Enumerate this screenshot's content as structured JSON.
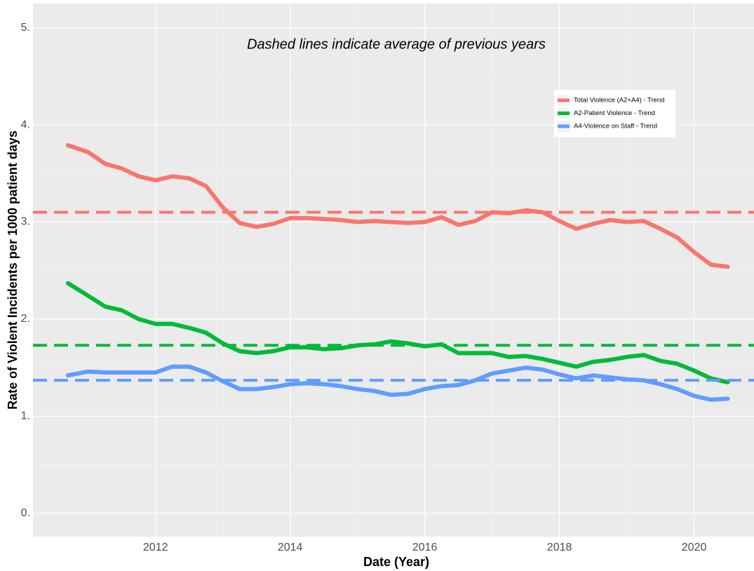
{
  "chart_data": {
    "type": "line",
    "annotation": "Dashed lines indicate average of previous years",
    "xlabel": "Date (Year)",
    "ylabel": "Rate of Violent Incidents per 1000 patient days",
    "xlim": [
      2010.18,
      2020.89
    ],
    "xticks": [
      2012,
      2014,
      2016,
      2018,
      2020
    ],
    "ylim": [
      -0.24,
      5.25
    ],
    "yticks": [
      {
        "value": 0,
        "label": "0."
      },
      {
        "value": 1,
        "label": "1."
      },
      {
        "value": 2,
        "label": "2."
      },
      {
        "value": 3,
        "label": "3."
      },
      {
        "value": 4,
        "label": "4."
      },
      {
        "value": 5,
        "label": "5."
      }
    ],
    "grid": true,
    "legend": "top-right",
    "x": [
      2010.7,
      2011.0,
      2011.25,
      2011.5,
      2011.75,
      2012.0,
      2012.25,
      2012.5,
      2012.75,
      2013.0,
      2013.25,
      2013.5,
      2013.75,
      2014.0,
      2014.25,
      2014.5,
      2014.75,
      2015.0,
      2015.25,
      2015.5,
      2015.75,
      2016.0,
      2016.25,
      2016.5,
      2016.75,
      2017.0,
      2017.25,
      2017.5,
      2017.75,
      2018.0,
      2018.25,
      2018.5,
      2018.75,
      2019.0,
      2019.25,
      2019.5,
      2019.75,
      2020.0,
      2020.25,
      2020.5
    ],
    "series": [
      {
        "name": "Total Violence (A2+A4) - Trend",
        "color": "#f8766d",
        "average": 3.1,
        "values": [
          3.79,
          3.72,
          3.6,
          3.55,
          3.47,
          3.43,
          3.47,
          3.45,
          3.37,
          3.15,
          2.99,
          2.95,
          2.98,
          3.04,
          3.04,
          3.03,
          3.02,
          3.0,
          3.01,
          3.0,
          2.99,
          3.0,
          3.05,
          2.97,
          3.01,
          3.1,
          3.09,
          3.12,
          3.1,
          3.01,
          2.93,
          2.98,
          3.02,
          3.0,
          3.01,
          2.93,
          2.84,
          2.69,
          2.56,
          2.54
        ]
      },
      {
        "name": "A2-Patient Violence - Trend",
        "color": "#00ba38",
        "average": 1.73,
        "values": [
          2.37,
          2.24,
          2.13,
          2.09,
          2.0,
          1.95,
          1.95,
          1.91,
          1.86,
          1.75,
          1.67,
          1.65,
          1.67,
          1.71,
          1.71,
          1.69,
          1.7,
          1.73,
          1.74,
          1.77,
          1.75,
          1.72,
          1.74,
          1.65,
          1.65,
          1.65,
          1.61,
          1.62,
          1.59,
          1.55,
          1.51,
          1.56,
          1.58,
          1.61,
          1.63,
          1.57,
          1.54,
          1.47,
          1.39,
          1.35
        ]
      },
      {
        "name": "A4-Violence on Staff - Trend",
        "color": "#619cff",
        "average": 1.37,
        "values": [
          1.42,
          1.46,
          1.45,
          1.45,
          1.45,
          1.45,
          1.51,
          1.51,
          1.45,
          1.36,
          1.28,
          1.28,
          1.3,
          1.33,
          1.34,
          1.33,
          1.31,
          1.28,
          1.26,
          1.22,
          1.23,
          1.28,
          1.31,
          1.32,
          1.37,
          1.44,
          1.47,
          1.5,
          1.48,
          1.43,
          1.39,
          1.42,
          1.4,
          1.38,
          1.37,
          1.33,
          1.28,
          1.21,
          1.17,
          1.18
        ]
      }
    ]
  }
}
